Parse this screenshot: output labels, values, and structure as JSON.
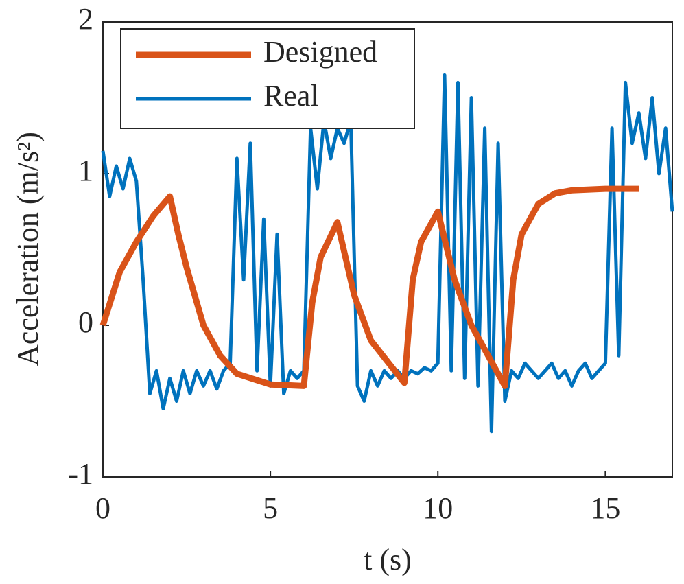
{
  "chart_data": {
    "type": "line",
    "xlabel": "t (s)",
    "ylabel": "Acceleration (m/s²)",
    "xlim": [
      0,
      17
    ],
    "ylim": [
      -1,
      2
    ],
    "xticks": [
      0,
      5,
      10,
      15
    ],
    "yticks": [
      -1,
      0,
      1,
      2
    ],
    "legend": "upper left",
    "series": [
      {
        "name": "Designed",
        "color": "#d95319",
        "x": [
          0,
          0.5,
          1,
          1.5,
          2,
          2.25,
          2.5,
          3,
          3.5,
          4,
          5,
          6,
          6.25,
          6.5,
          7,
          7.5,
          8,
          9,
          9.25,
          9.5,
          10,
          10.5,
          11,
          12,
          12.25,
          12.5,
          13,
          13.5,
          14,
          15,
          16
        ],
        "values": [
          0,
          0.35,
          0.55,
          0.72,
          0.85,
          0.6,
          0.38,
          0.0,
          -0.2,
          -0.32,
          -0.39,
          -0.4,
          0.15,
          0.45,
          0.68,
          0.2,
          -0.1,
          -0.38,
          0.3,
          0.55,
          0.75,
          0.3,
          0.0,
          -0.4,
          0.3,
          0.6,
          0.8,
          0.87,
          0.89,
          0.9,
          0.9
        ]
      },
      {
        "name": "Real",
        "color": "#0072bd",
        "x": [
          0,
          0.2,
          0.4,
          0.6,
          0.8,
          1,
          1.2,
          1.4,
          1.6,
          1.8,
          2,
          2.2,
          2.4,
          2.6,
          2.8,
          3,
          3.2,
          3.4,
          3.6,
          3.8,
          4,
          4.2,
          4.4,
          4.6,
          4.8,
          5,
          5.2,
          5.4,
          5.6,
          5.8,
          6,
          6.2,
          6.4,
          6.6,
          6.8,
          7,
          7.2,
          7.4,
          7.6,
          7.8,
          8,
          8.2,
          8.4,
          8.6,
          8.8,
          9,
          9.2,
          9.4,
          9.6,
          9.8,
          10,
          10.2,
          10.4,
          10.6,
          10.8,
          11,
          11.2,
          11.4,
          11.6,
          11.8,
          12,
          12.2,
          12.4,
          12.6,
          12.8,
          13,
          13.2,
          13.4,
          13.6,
          13.8,
          14,
          14.2,
          14.4,
          14.6,
          14.8,
          15,
          15.2,
          15.4,
          15.6,
          15.8,
          16,
          16.2,
          16.4,
          16.6,
          16.8,
          17
        ],
        "values": [
          1.15,
          0.85,
          1.05,
          0.9,
          1.1,
          0.95,
          0.3,
          -0.45,
          -0.3,
          -0.55,
          -0.35,
          -0.5,
          -0.3,
          -0.45,
          -0.3,
          -0.4,
          -0.3,
          -0.42,
          -0.3,
          -0.25,
          1.1,
          0.3,
          1.2,
          -0.3,
          0.7,
          -0.4,
          0.6,
          -0.45,
          -0.3,
          -0.35,
          -0.3,
          1.3,
          0.9,
          1.35,
          1.1,
          1.3,
          1.2,
          1.35,
          -0.4,
          -0.5,
          -0.3,
          -0.4,
          -0.3,
          -0.35,
          -0.3,
          -0.35,
          -0.3,
          -0.32,
          -0.28,
          -0.3,
          -0.25,
          1.65,
          -0.3,
          1.6,
          -0.35,
          1.5,
          -0.4,
          1.3,
          -0.7,
          1.2,
          -0.5,
          -0.3,
          -0.35,
          -0.25,
          -0.3,
          -0.35,
          -0.3,
          -0.25,
          -0.35,
          -0.3,
          -0.4,
          -0.3,
          -0.25,
          -0.35,
          -0.3,
          -0.25,
          1.3,
          -0.2,
          1.6,
          1.2,
          1.4,
          1.1,
          1.5,
          1.0,
          1.3,
          0.75
        ]
      }
    ]
  }
}
